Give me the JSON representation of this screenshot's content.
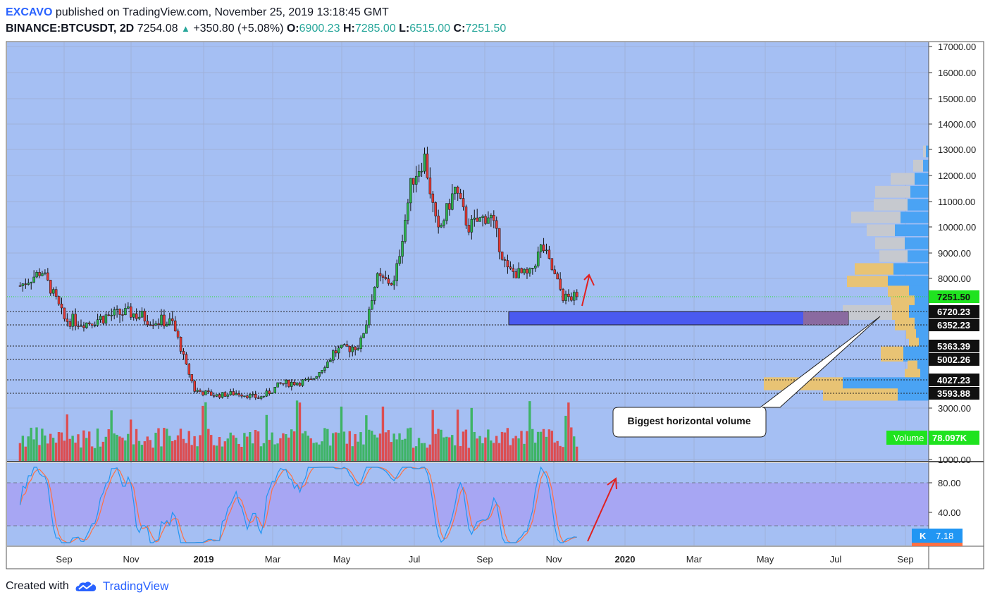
{
  "header": {
    "publisher": "EXCAVO",
    "published_text": "published on TradingView.com, November 25, 2019 13:18:45 GMT",
    "symbol": "BINANCE:BTCUSDT, 2D",
    "last": "7254.08",
    "change": "+350.80 (+5.08%)",
    "o_label": "O:",
    "o": "6900.23",
    "h_label": "H:",
    "h": "7285.00",
    "l_label": "L:",
    "l": "6515.00",
    "c_label": "C:",
    "c": "7251.50"
  },
  "footer": {
    "created_with": "Created with",
    "brand": "TradingView"
  },
  "colors": {
    "background": "#a5bff3",
    "up": "#2bb24c",
    "down": "#e53935",
    "stoch_k": "#2196f3",
    "stoch_d": "#ff7043",
    "stoch_band": "#a7a6f3",
    "zone": "#4a5af0",
    "profile_up": "#4aa3f4",
    "profile_down": "#e8c374",
    "profile_gray": "#c6c9cf",
    "price_tag": "#1fe31f"
  },
  "chart_data": {
    "type": "candlestick",
    "symbol": "BINANCE:BTCUSDT",
    "interval": "2D",
    "x_labels": [
      "Sep",
      "Nov",
      "2019",
      "Mar",
      "May",
      "Jul",
      "Sep",
      "Nov",
      "2020",
      "Mar",
      "May",
      "Jul",
      "Sep"
    ],
    "y_ticks": [
      "17000.00",
      "16000.00",
      "15000.00",
      "14000.00",
      "13000.00",
      "12000.00",
      "11000.00",
      "10000.00",
      "9000.00",
      "8000.00",
      "3000.00",
      "1000.00"
    ],
    "ylim": [
      1000,
      17000
    ],
    "series": [
      {
        "name": "close_path",
        "points": [
          [
            2018.6,
            7700
          ],
          [
            2018.65,
            8300
          ],
          [
            2018.7,
            6500
          ],
          [
            2018.75,
            6400
          ],
          [
            2018.8,
            6600
          ],
          [
            2018.85,
            6700
          ],
          [
            2018.9,
            6500
          ],
          [
            2018.95,
            6400
          ],
          [
            2019.0,
            3700
          ],
          [
            2019.05,
            3500
          ],
          [
            2019.1,
            3600
          ],
          [
            2019.15,
            3400
          ],
          [
            2019.2,
            3900
          ],
          [
            2019.27,
            4000
          ],
          [
            2019.32,
            5200
          ],
          [
            2019.38,
            5400
          ],
          [
            2019.42,
            8000
          ],
          [
            2019.46,
            7800
          ],
          [
            2019.5,
            11800
          ],
          [
            2019.53,
            12700
          ],
          [
            2019.56,
            9700
          ],
          [
            2019.6,
            11500
          ],
          [
            2019.63,
            10000
          ],
          [
            2019.68,
            10500
          ],
          [
            2019.72,
            8300
          ],
          [
            2019.77,
            8100
          ],
          [
            2019.8,
            9300
          ],
          [
            2019.85,
            7200
          ],
          [
            2019.88,
            7251.5
          ]
        ]
      }
    ],
    "price_levels": [
      {
        "label": "7251.50",
        "value": 7251.5,
        "kind": "last"
      },
      {
        "label": "6720.23",
        "value": 6720.23,
        "kind": "level"
      },
      {
        "label": "6352.23",
        "value": 6352.23,
        "kind": "level"
      },
      {
        "label": "5363.39",
        "value": 5363.39,
        "kind": "level"
      },
      {
        "label": "5002.26",
        "value": 5002.26,
        "kind": "level"
      },
      {
        "label": "4027.23",
        "value": 4027.23,
        "kind": "level"
      },
      {
        "label": "3593.88",
        "value": 3593.88,
        "kind": "level"
      }
    ],
    "volume": {
      "label": "Volume",
      "value": "78.097K"
    },
    "stochastic": {
      "y_ticks": [
        "80.00",
        "40.00"
      ],
      "band": [
        20,
        80
      ],
      "k_label": "K",
      "k_value": "7.18"
    },
    "annotation": "Biggest horizontal volume"
  }
}
